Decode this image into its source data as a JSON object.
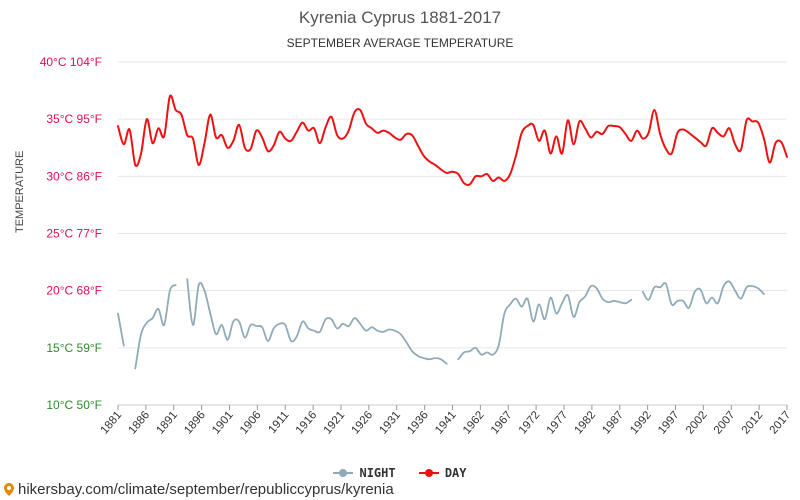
{
  "chart_data": {
    "type": "line",
    "title": "Kyrenia Cyprus 1881-2017",
    "subtitle": "SEPTEMBER AVERAGE TEMPERATURE",
    "ylabel": "TEMPERATURE",
    "xlabel": "",
    "ylim": [
      10,
      40
    ],
    "y_ticks": [
      {
        "c": 10,
        "label": "10°C 50°F",
        "color": "#2e8b2e"
      },
      {
        "c": 15,
        "label": "15°C 59°F",
        "color": "#2e8b2e"
      },
      {
        "c": 20,
        "label": "20°C 68°F",
        "color": "#dd1155"
      },
      {
        "c": 25,
        "label": "25°C 77°F",
        "color": "#dd1155"
      },
      {
        "c": 30,
        "label": "30°C 86°F",
        "color": "#dd1155"
      },
      {
        "c": 35,
        "label": "35°C 95°F",
        "color": "#dd1155"
      },
      {
        "c": 40,
        "label": "40°C 104°F",
        "color": "#dd1155"
      }
    ],
    "x_ticks": [
      "1881",
      "1886",
      "1891",
      "1896",
      "1901",
      "1906",
      "1911",
      "1916",
      "1921",
      "1926",
      "1931",
      "1936",
      "1941",
      "1962",
      "1967",
      "1972",
      "1977",
      "1982",
      "1987",
      "1992",
      "1997",
      "2002",
      "2007",
      "2012",
      "2017"
    ],
    "grid": true,
    "legend_position": "bottom",
    "series": [
      {
        "name": "NIGHT",
        "color": "#8fabb8",
        "segments": [
          [
            [
              0,
              18.0
            ],
            [
              1,
              15.2
            ]
          ],
          [
            [
              3,
              13.2
            ],
            [
              4,
              16.2
            ],
            [
              5,
              17.2
            ],
            [
              6,
              17.6
            ],
            [
              7,
              18.4
            ],
            [
              8,
              17.0
            ],
            [
              9,
              20.0
            ],
            [
              10,
              20.5
            ]
          ],
          [
            [
              12,
              21.0
            ],
            [
              13,
              17.0
            ],
            [
              14,
              20.5
            ],
            [
              15,
              20.0
            ],
            [
              16,
              18.0
            ],
            [
              17,
              16.2
            ],
            [
              18,
              17.0
            ],
            [
              19,
              15.7
            ],
            [
              20,
              17.3
            ],
            [
              21,
              17.3
            ],
            [
              22,
              15.9
            ],
            [
              23,
              17.0
            ],
            [
              24,
              16.9
            ],
            [
              25,
              16.8
            ],
            [
              26,
              15.6
            ],
            [
              27,
              16.7
            ],
            [
              28,
              17.1
            ],
            [
              29,
              17.0
            ],
            [
              30,
              15.6
            ],
            [
              31,
              16.0
            ],
            [
              32,
              17.3
            ],
            [
              33,
              16.7
            ],
            [
              34,
              16.5
            ],
            [
              35,
              16.4
            ],
            [
              36,
              17.5
            ],
            [
              37,
              17.5
            ],
            [
              38,
              16.7
            ],
            [
              39,
              17.1
            ],
            [
              40,
              16.9
            ],
            [
              41,
              17.6
            ],
            [
              42,
              17.1
            ],
            [
              43,
              16.5
            ],
            [
              44,
              16.8
            ],
            [
              45,
              16.5
            ],
            [
              46,
              16.4
            ],
            [
              47,
              16.6
            ],
            [
              48,
              16.5
            ],
            [
              49,
              16.2
            ],
            [
              50,
              15.5
            ],
            [
              51,
              14.7
            ],
            [
              52,
              14.3
            ],
            [
              53,
              14.1
            ],
            [
              54,
              14.0
            ],
            [
              55,
              14.1
            ],
            [
              56,
              14.0
            ],
            [
              57,
              13.6
            ]
          ],
          [
            [
              59,
              14.0
            ],
            [
              60,
              14.6
            ],
            [
              61,
              14.7
            ],
            [
              62,
              15.0
            ],
            [
              63,
              14.4
            ],
            [
              64,
              14.6
            ],
            [
              65,
              14.4
            ],
            [
              66,
              15.2
            ],
            [
              67,
              18.0
            ],
            [
              68,
              18.8
            ],
            [
              69,
              19.3
            ],
            [
              70,
              18.6
            ],
            [
              71,
              19.3
            ],
            [
              72,
              17.3
            ],
            [
              73,
              18.8
            ],
            [
              74,
              17.5
            ],
            [
              75,
              19.4
            ],
            [
              76,
              18.0
            ],
            [
              77,
              18.9
            ],
            [
              78,
              19.6
            ],
            [
              79,
              17.7
            ],
            [
              80,
              19.0
            ],
            [
              81,
              19.5
            ],
            [
              82,
              20.4
            ],
            [
              83,
              20.2
            ],
            [
              84,
              19.3
            ],
            [
              85,
              19.0
            ],
            [
              86,
              19.1
            ],
            [
              87,
              19.0
            ],
            [
              88,
              18.9
            ],
            [
              89,
              19.2
            ]
          ],
          [
            [
              91,
              19.9
            ],
            [
              92,
              19.2
            ],
            [
              93,
              20.3
            ],
            [
              94,
              20.3
            ],
            [
              95,
              20.6
            ],
            [
              96,
              18.8
            ],
            [
              97,
              19.1
            ],
            [
              98,
              19.1
            ],
            [
              99,
              18.5
            ],
            [
              100,
              19.9
            ],
            [
              101,
              20.1
            ],
            [
              102,
              18.9
            ],
            [
              103,
              19.4
            ],
            [
              104,
              18.9
            ],
            [
              105,
              20.4
            ],
            [
              106,
              20.8
            ],
            [
              107,
              20.0
            ],
            [
              108,
              19.3
            ],
            [
              109,
              20.3
            ],
            [
              110,
              20.4
            ],
            [
              111,
              20.2
            ],
            [
              112,
              19.7
            ]
          ]
        ]
      },
      {
        "name": "DAY",
        "color": "#ee1111",
        "segments": [
          [
            [
              0,
              34.4
            ],
            [
              1,
              32.8
            ],
            [
              2,
              34.1
            ],
            [
              3,
              31.0
            ],
            [
              4,
              32.0
            ],
            [
              5,
              35.0
            ],
            [
              6,
              32.9
            ],
            [
              7,
              34.2
            ],
            [
              8,
              33.5
            ],
            [
              9,
              37.0
            ],
            [
              10,
              35.8
            ],
            [
              11,
              35.4
            ],
            [
              12,
              33.6
            ],
            [
              13,
              33.3
            ],
            [
              14,
              31.0
            ],
            [
              15,
              32.9
            ],
            [
              16,
              35.4
            ],
            [
              17,
              33.4
            ],
            [
              18,
              33.6
            ],
            [
              19,
              32.5
            ],
            [
              20,
              33.1
            ],
            [
              21,
              34.5
            ],
            [
              22,
              32.5
            ],
            [
              23,
              32.4
            ],
            [
              24,
              34.0
            ],
            [
              25,
              33.4
            ],
            [
              26,
              32.2
            ],
            [
              27,
              32.7
            ],
            [
              28,
              33.9
            ],
            [
              29,
              33.3
            ],
            [
              30,
              33.1
            ],
            [
              31,
              33.9
            ],
            [
              32,
              34.7
            ],
            [
              33,
              34.0
            ],
            [
              34,
              34.2
            ],
            [
              35,
              32.9
            ],
            [
              36,
              34.3
            ],
            [
              37,
              35.2
            ],
            [
              38,
              33.6
            ],
            [
              39,
              33.3
            ],
            [
              40,
              34.0
            ],
            [
              41,
              35.6
            ],
            [
              42,
              35.8
            ],
            [
              43,
              34.6
            ],
            [
              44,
              34.2
            ],
            [
              45,
              33.8
            ],
            [
              46,
              34.0
            ],
            [
              47,
              33.8
            ],
            [
              48,
              33.4
            ],
            [
              49,
              33.2
            ],
            [
              50,
              33.7
            ],
            [
              51,
              33.6
            ],
            [
              52,
              32.7
            ],
            [
              53,
              31.8
            ],
            [
              54,
              31.3
            ],
            [
              55,
              31.0
            ],
            [
              56,
              30.6
            ],
            [
              57,
              30.3
            ],
            [
              58,
              30.4
            ],
            [
              59,
              30.2
            ],
            [
              60,
              29.4
            ],
            [
              61,
              29.3
            ],
            [
              62,
              30.0
            ],
            [
              63,
              30.0
            ],
            [
              64,
              30.2
            ],
            [
              65,
              29.6
            ],
            [
              66,
              29.9
            ],
            [
              67,
              29.6
            ],
            [
              68,
              30.2
            ],
            [
              69,
              31.8
            ],
            [
              70,
              33.8
            ],
            [
              71,
              34.4
            ],
            [
              72,
              34.5
            ],
            [
              73,
              33.1
            ],
            [
              74,
              34.0
            ],
            [
              75,
              32.0
            ],
            [
              76,
              33.5
            ],
            [
              77,
              32.0
            ],
            [
              78,
              34.9
            ],
            [
              79,
              32.8
            ],
            [
              80,
              34.8
            ],
            [
              81,
              34.2
            ],
            [
              82,
              33.4
            ],
            [
              83,
              33.9
            ],
            [
              84,
              33.7
            ],
            [
              85,
              34.4
            ],
            [
              86,
              34.4
            ],
            [
              87,
              34.3
            ],
            [
              88,
              33.7
            ],
            [
              89,
              33.1
            ],
            [
              90,
              34.0
            ],
            [
              91,
              33.3
            ],
            [
              92,
              33.8
            ],
            [
              93,
              35.8
            ],
            [
              94,
              33.7
            ],
            [
              95,
              32.4
            ],
            [
              96,
              32.0
            ],
            [
              97,
              33.8
            ],
            [
              98,
              34.1
            ],
            [
              99,
              33.8
            ],
            [
              100,
              33.4
            ],
            [
              101,
              33.0
            ],
            [
              102,
              32.7
            ],
            [
              103,
              34.2
            ],
            [
              104,
              33.8
            ],
            [
              105,
              33.5
            ],
            [
              106,
              34.2
            ],
            [
              107,
              32.8
            ],
            [
              108,
              32.3
            ],
            [
              109,
              34.9
            ],
            [
              110,
              34.8
            ],
            [
              111,
              34.7
            ],
            [
              112,
              33.3
            ],
            [
              113,
              31.2
            ],
            [
              114,
              32.9
            ],
            [
              115,
              33.0
            ],
            [
              116,
              31.7
            ]
          ]
        ]
      }
    ]
  },
  "footer": {
    "url": "hikersbay.com/climate/september/republiccyprus/kyrenia",
    "pin_color": "#e68a00"
  }
}
